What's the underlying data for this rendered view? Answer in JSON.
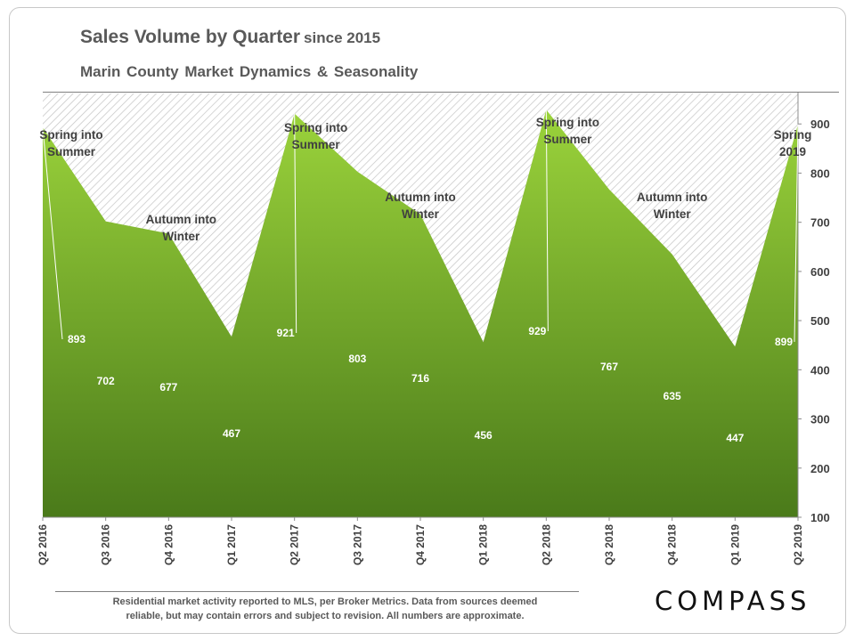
{
  "header": {
    "title": "Sales Volume by Quarter",
    "title_suffix": "since 2015",
    "subtitle": "Marin County Market Dynamics & Seasonality"
  },
  "chart_data": {
    "type": "area",
    "title": "Sales Volume by Quarter since 2015",
    "subtitle": "Marin County Market Dynamics & Seasonality",
    "categories": [
      "Q2 2016",
      "Q3 2016",
      "Q4 2016",
      "Q1 2017",
      "Q2 2017",
      "Q3 2017",
      "Q4 2017",
      "Q1 2018",
      "Q2 2018",
      "Q3 2018",
      "Q4 2018",
      "Q1 2019",
      "Q2 2019"
    ],
    "values": [
      893,
      702,
      677,
      467,
      921,
      803,
      716,
      456,
      929,
      767,
      635,
      447,
      899
    ],
    "ylim": [
      100,
      1000
    ],
    "yticks": [
      100,
      200,
      300,
      400,
      500,
      600,
      700,
      800,
      900
    ],
    "y_axis_side": "right",
    "fill_colors": {
      "top": "#9bd33b",
      "bottom": "#4a7a1a"
    },
    "hatch_color": "#bfbfbf",
    "label_color": "#ffffff",
    "annotations": [
      {
        "text": "Spring into|Summer",
        "category": "Q2 2016",
        "placement": "top-left"
      },
      {
        "text": "Autumn into|Winter",
        "category": "Q4 2016",
        "placement": "upper"
      },
      {
        "text": "Spring into|Summer",
        "category": "Q2 2017",
        "placement": "top"
      },
      {
        "text": "Autumn into|Winter",
        "category": "Q4 2017",
        "placement": "upper"
      },
      {
        "text": "Spring into|Summer",
        "category": "Q2 2018",
        "placement": "top"
      },
      {
        "text": "Autumn into|Winter",
        "category": "Q4 2018",
        "placement": "upper"
      },
      {
        "text": "Spring|2019",
        "category": "Q2 2019",
        "placement": "top-right"
      }
    ]
  },
  "footer": {
    "note_line1": "Residential market activity reported to MLS, per Broker Metrics. Data from sources deemed",
    "note_line2": "reliable, but may contain errors and subject to revision. All numbers are approximate.",
    "logo": "COMPASS"
  }
}
